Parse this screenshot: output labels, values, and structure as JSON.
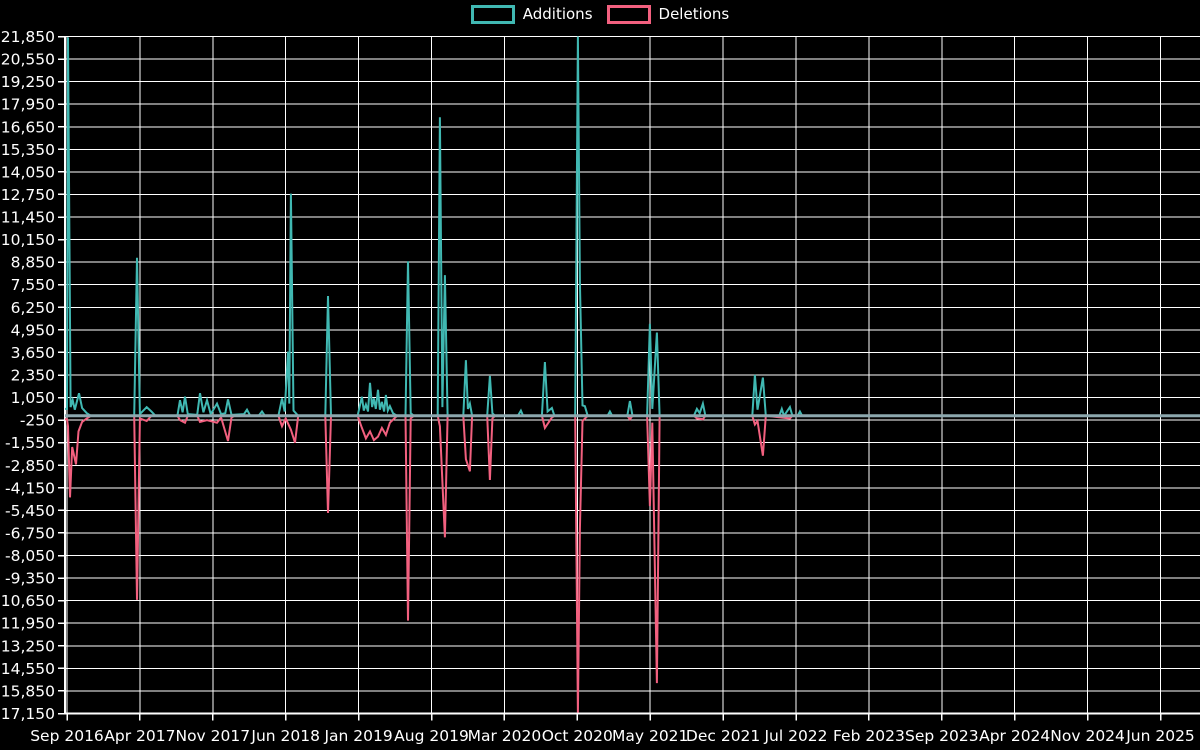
{
  "legend": {
    "items": [
      {
        "label": "Additions"
      },
      {
        "label": "Deletions"
      }
    ]
  },
  "chart_data": {
    "type": "line",
    "title": "",
    "xlabel": "",
    "ylabel": "",
    "legend_position": "top",
    "grid": true,
    "background": "#000000",
    "axis_color": "#ffffff",
    "text_color": "#ffffff",
    "baseline_color": "#8ca7ae",
    "ylim": [
      -17150,
      21850
    ],
    "y_tick_step": 1300,
    "y_ticks": [
      21850,
      20550,
      19250,
      17950,
      16650,
      15350,
      14050,
      12750,
      11450,
      10150,
      8850,
      7550,
      6250,
      4950,
      3650,
      2350,
      1050,
      -250,
      -1550,
      -2850,
      -4150,
      -5450,
      -6750,
      -8050,
      -9350,
      -10650,
      -11950,
      -13250,
      -14550,
      -15850,
      -17150
    ],
    "x_ticks": [
      "Sep 2016",
      "Apr 2017",
      "Nov 2017",
      "Jun 2018",
      "Jan 2019",
      "Aug 2019",
      "Mar 2020",
      "Oct 2020",
      "May 2021",
      "Dec 2021",
      "Jul 2022",
      "Feb 2023",
      "Sep 2023",
      "Apr 2024",
      "Nov 2024",
      "Jun 2025"
    ],
    "x_tick_month_offsets": [
      0,
      7,
      14,
      21,
      28,
      35,
      42,
      49,
      56,
      63,
      70,
      77,
      84,
      91,
      98,
      105
    ],
    "x_domain_months": [
      0,
      108.8
    ],
    "series": [
      {
        "name": "Additions",
        "color": "#40b8b2",
        "points": [
          [
            0,
            400
          ],
          [
            0.1,
            21800
          ],
          [
            0.35,
            500
          ],
          [
            0.55,
            900
          ],
          [
            0.75,
            350
          ],
          [
            1.15,
            1300
          ],
          [
            1.45,
            450
          ],
          [
            1.9,
            150
          ],
          [
            2.3,
            0
          ],
          [
            6.45,
            0
          ],
          [
            6.72,
            9100
          ],
          [
            7.0,
            100
          ],
          [
            7.65,
            500
          ],
          [
            8.1,
            250
          ],
          [
            8.5,
            0
          ],
          [
            10.6,
            0
          ],
          [
            10.85,
            900
          ],
          [
            11.1,
            200
          ],
          [
            11.33,
            1100
          ],
          [
            11.6,
            100
          ],
          [
            12.5,
            50
          ],
          [
            12.77,
            1300
          ],
          [
            13.1,
            200
          ],
          [
            13.44,
            900
          ],
          [
            13.8,
            100
          ],
          [
            14.4,
            700
          ],
          [
            14.8,
            100
          ],
          [
            15.2,
            150
          ],
          [
            15.46,
            950
          ],
          [
            15.8,
            50
          ],
          [
            17.0,
            100
          ],
          [
            17.28,
            350
          ],
          [
            17.6,
            0
          ],
          [
            18.4,
            0
          ],
          [
            18.72,
            250
          ],
          [
            19.0,
            0
          ],
          [
            20.3,
            0
          ],
          [
            20.64,
            1000
          ],
          [
            20.9,
            250
          ],
          [
            21.22,
            3700
          ],
          [
            21.35,
            700
          ],
          [
            21.5,
            12800
          ],
          [
            21.75,
            300
          ],
          [
            22.2,
            0
          ],
          [
            24.8,
            0
          ],
          [
            25.06,
            6900
          ],
          [
            25.35,
            0
          ],
          [
            27.9,
            0
          ],
          [
            28.32,
            1100
          ],
          [
            28.5,
            300
          ],
          [
            28.7,
            650
          ],
          [
            28.9,
            250
          ],
          [
            29.09,
            1900
          ],
          [
            29.3,
            500
          ],
          [
            29.47,
            1000
          ],
          [
            29.65,
            400
          ],
          [
            29.86,
            1500
          ],
          [
            30.05,
            350
          ],
          [
            30.24,
            800
          ],
          [
            30.45,
            250
          ],
          [
            30.62,
            1200
          ],
          [
            30.8,
            300
          ],
          [
            31.01,
            550
          ],
          [
            31.3,
            150
          ],
          [
            31.7,
            0
          ],
          [
            32.5,
            0
          ],
          [
            32.74,
            8900
          ],
          [
            33.0,
            150
          ],
          [
            33.3,
            0
          ],
          [
            35.6,
            0
          ],
          [
            35.81,
            17200
          ],
          [
            36.05,
            500
          ],
          [
            36.29,
            8100
          ],
          [
            36.55,
            0
          ],
          [
            38.05,
            0
          ],
          [
            38.3,
            3200
          ],
          [
            38.5,
            400
          ],
          [
            38.69,
            700
          ],
          [
            38.9,
            0
          ],
          [
            40.35,
            0
          ],
          [
            40.61,
            2300
          ],
          [
            40.85,
            150
          ],
          [
            41.1,
            0
          ],
          [
            43.3,
            0
          ],
          [
            43.58,
            300
          ],
          [
            43.8,
            0
          ],
          [
            45.6,
            0
          ],
          [
            45.89,
            3100
          ],
          [
            46.15,
            250
          ],
          [
            46.56,
            450
          ],
          [
            46.8,
            0
          ],
          [
            48.8,
            0
          ],
          [
            49.06,
            21850
          ],
          [
            49.25,
            7700
          ],
          [
            49.5,
            600
          ],
          [
            49.73,
            550
          ],
          [
            50.0,
            0
          ],
          [
            51.9,
            0
          ],
          [
            52.13,
            250
          ],
          [
            52.35,
            0
          ],
          [
            53.8,
            0
          ],
          [
            54.05,
            850
          ],
          [
            54.3,
            0
          ],
          [
            55.7,
            0
          ],
          [
            55.97,
            5300
          ],
          [
            56.2,
            400
          ],
          [
            56.64,
            4800
          ],
          [
            56.9,
            0
          ],
          [
            60.2,
            0
          ],
          [
            60.48,
            400
          ],
          [
            60.75,
            150
          ],
          [
            61.06,
            700
          ],
          [
            61.3,
            0
          ],
          [
            65.8,
            0
          ],
          [
            66.05,
            2350
          ],
          [
            66.3,
            350
          ],
          [
            66.82,
            2200
          ],
          [
            67.1,
            0
          ],
          [
            68.4,
            0
          ],
          [
            68.64,
            400
          ],
          [
            68.85,
            0
          ],
          [
            69.41,
            500
          ],
          [
            69.65,
            0
          ],
          [
            70.15,
            0
          ],
          [
            70.37,
            250
          ],
          [
            70.6,
            0
          ],
          [
            108.8,
            0
          ]
        ]
      },
      {
        "name": "Deletions",
        "color": "#f2607f",
        "points": [
          [
            0,
            -200
          ],
          [
            0.1,
            -600
          ],
          [
            0.29,
            -4700
          ],
          [
            0.5,
            -1800
          ],
          [
            0.86,
            -2800
          ],
          [
            1.1,
            -900
          ],
          [
            1.45,
            -350
          ],
          [
            1.9,
            -150
          ],
          [
            2.3,
            0
          ],
          [
            6.45,
            0
          ],
          [
            6.72,
            -10600
          ],
          [
            7.0,
            -150
          ],
          [
            7.65,
            -300
          ],
          [
            8.1,
            0
          ],
          [
            10.6,
            0
          ],
          [
            10.85,
            -250
          ],
          [
            11.33,
            -400
          ],
          [
            11.6,
            0
          ],
          [
            12.5,
            0
          ],
          [
            12.77,
            -350
          ],
          [
            13.44,
            -250
          ],
          [
            14.4,
            -400
          ],
          [
            14.8,
            -100
          ],
          [
            15.46,
            -1450
          ],
          [
            15.8,
            -100
          ],
          [
            16.1,
            0
          ],
          [
            20.3,
            0
          ],
          [
            20.64,
            -600
          ],
          [
            21.0,
            -150
          ],
          [
            21.5,
            -800
          ],
          [
            21.89,
            -1550
          ],
          [
            22.2,
            0
          ],
          [
            24.8,
            0
          ],
          [
            25.06,
            -5600
          ],
          [
            25.35,
            0
          ],
          [
            27.9,
            0
          ],
          [
            28.32,
            -700
          ],
          [
            28.7,
            -1300
          ],
          [
            29.09,
            -900
          ],
          [
            29.47,
            -1400
          ],
          [
            29.86,
            -1200
          ],
          [
            30.24,
            -700
          ],
          [
            30.62,
            -1100
          ],
          [
            31.01,
            -400
          ],
          [
            31.7,
            0
          ],
          [
            32.5,
            0
          ],
          [
            32.74,
            -11800
          ],
          [
            33.0,
            -150
          ],
          [
            33.3,
            0
          ],
          [
            35.6,
            0
          ],
          [
            35.81,
            -600
          ],
          [
            36.29,
            -7000
          ],
          [
            36.55,
            0
          ],
          [
            38.05,
            0
          ],
          [
            38.3,
            -2500
          ],
          [
            38.69,
            -3200
          ],
          [
            38.9,
            0
          ],
          [
            40.35,
            0
          ],
          [
            40.61,
            -3700
          ],
          [
            40.85,
            -150
          ],
          [
            41.1,
            0
          ],
          [
            45.6,
            0
          ],
          [
            45.89,
            -700
          ],
          [
            46.56,
            -100
          ],
          [
            46.8,
            0
          ],
          [
            48.8,
            0
          ],
          [
            49.06,
            -17100
          ],
          [
            49.25,
            -6500
          ],
          [
            49.5,
            -300
          ],
          [
            50.0,
            0
          ],
          [
            53.8,
            0
          ],
          [
            54.05,
            -200
          ],
          [
            54.3,
            0
          ],
          [
            55.7,
            0
          ],
          [
            55.97,
            -5200
          ],
          [
            56.2,
            -400
          ],
          [
            56.64,
            -15400
          ],
          [
            56.9,
            0
          ],
          [
            60.2,
            0
          ],
          [
            60.48,
            -150
          ],
          [
            61.06,
            -200
          ],
          [
            61.3,
            0
          ],
          [
            65.8,
            0
          ],
          [
            66.05,
            -500
          ],
          [
            66.3,
            -300
          ],
          [
            66.82,
            -2300
          ],
          [
            67.1,
            0
          ],
          [
            69.41,
            -150
          ],
          [
            69.65,
            0
          ],
          [
            108.8,
            0
          ]
        ]
      }
    ]
  }
}
